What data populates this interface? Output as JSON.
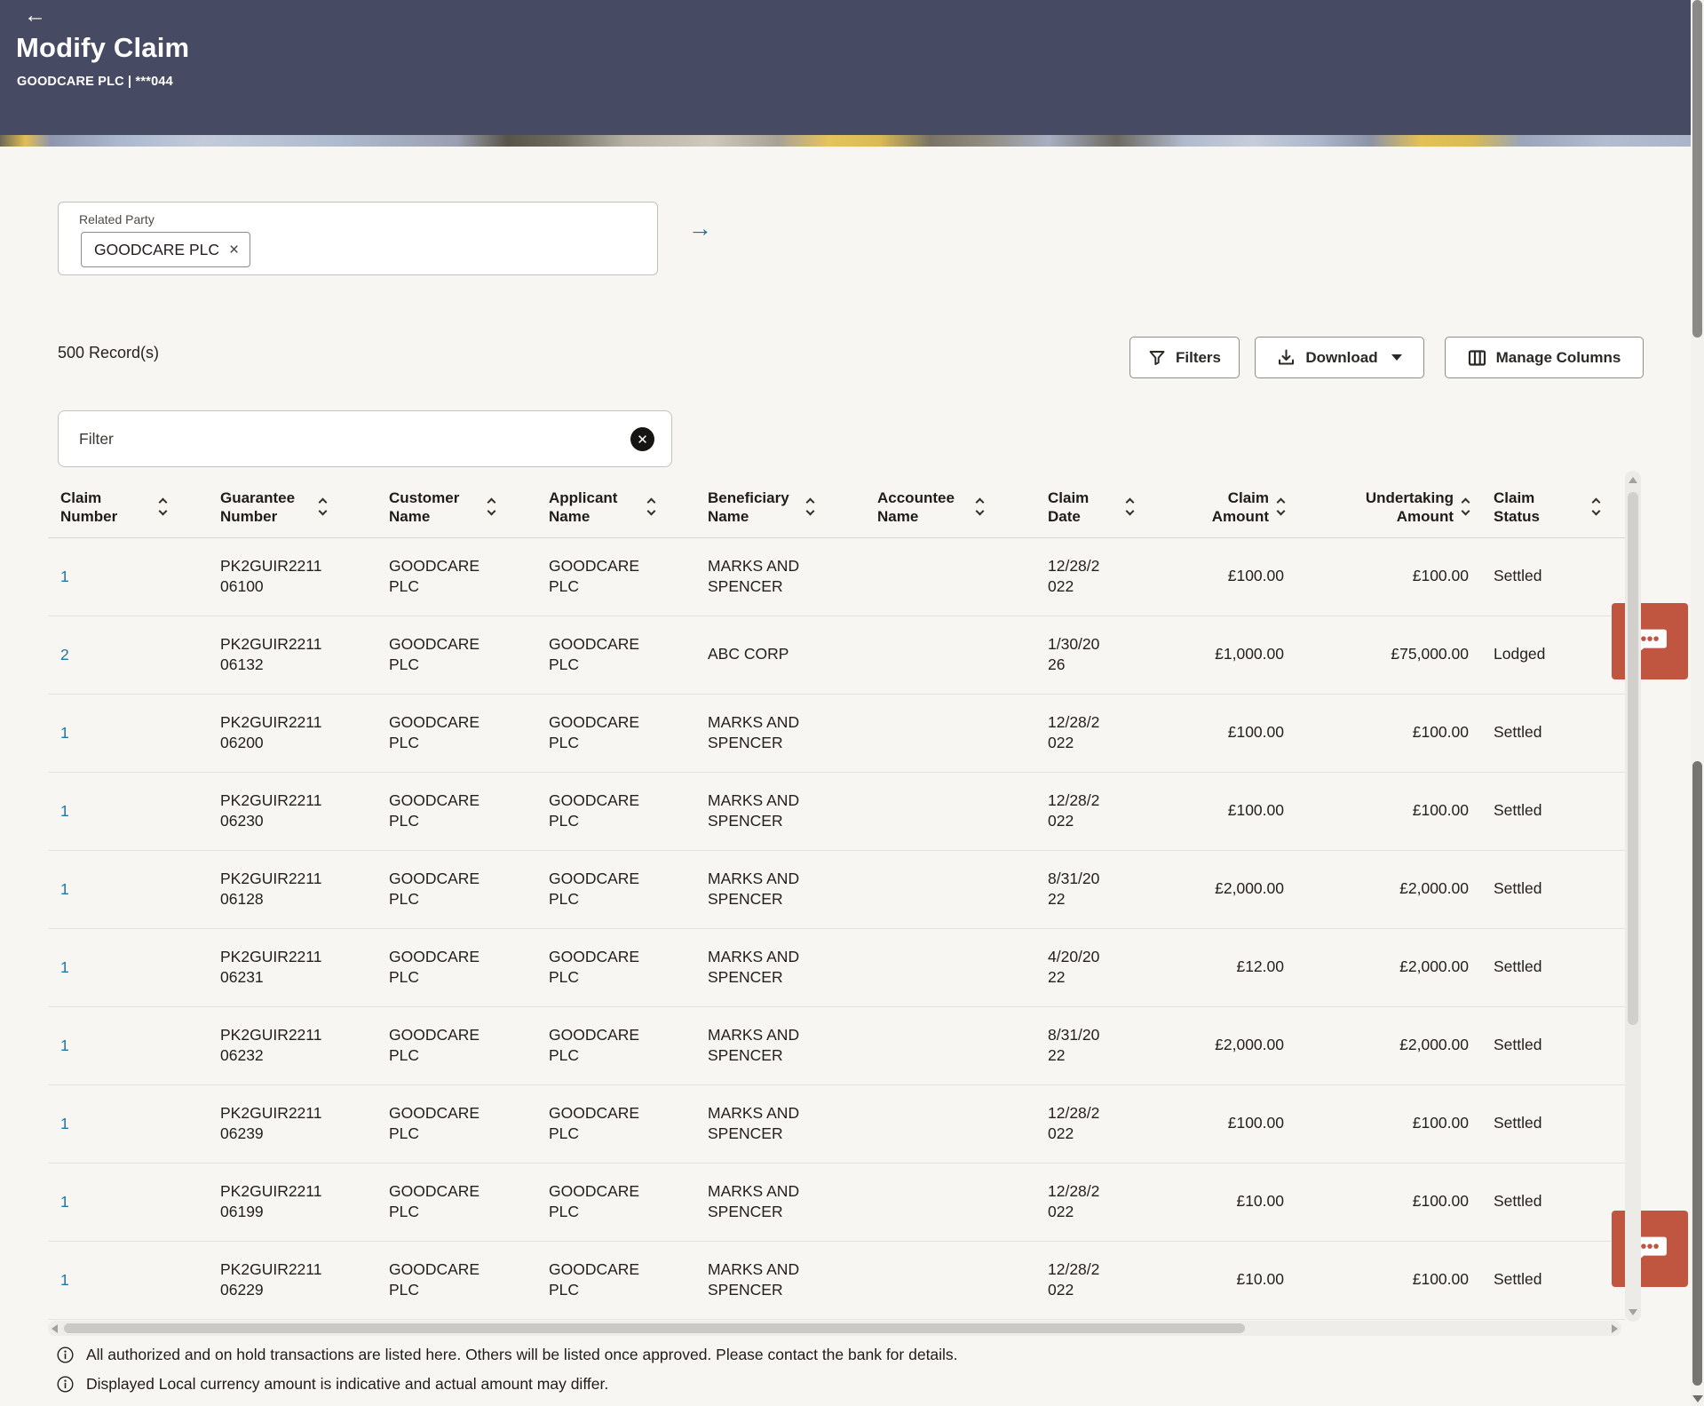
{
  "header": {
    "back_icon": "←",
    "title": "Modify Claim",
    "subtitle": "GOODCARE PLC | ***044"
  },
  "related_party": {
    "label": "Related Party",
    "chip_value": "GOODCARE PLC",
    "chip_close_icon": "×",
    "submit_arrow_icon": "→"
  },
  "records_count": "500 Record(s)",
  "toolbar": {
    "filters_label": "Filters",
    "download_label": "Download",
    "manage_columns_label": "Manage Columns"
  },
  "filter": {
    "placeholder": "Filter",
    "value": "",
    "clear_icon": "✕"
  },
  "table": {
    "columns": [
      {
        "key": "claim_number",
        "label": "Claim Number",
        "align": "left",
        "sortable": true
      },
      {
        "key": "guarantee_number",
        "label": "Guarantee Number",
        "align": "left",
        "sortable": true
      },
      {
        "key": "customer_name",
        "label": "Customer Name",
        "align": "left",
        "sortable": true
      },
      {
        "key": "applicant_name",
        "label": "Applicant Name",
        "align": "left",
        "sortable": true
      },
      {
        "key": "beneficiary_name",
        "label": "Beneficiary Name",
        "align": "left",
        "sortable": true
      },
      {
        "key": "accountee_name",
        "label": "Accountee Name",
        "align": "left",
        "sortable": true
      },
      {
        "key": "claim_date",
        "label": "Claim Date",
        "align": "left",
        "sortable": true
      },
      {
        "key": "claim_amount",
        "label": "Claim Amount",
        "align": "right",
        "sortable": true
      },
      {
        "key": "undertaking_amount",
        "label": "Undertaking Amount",
        "align": "right",
        "sortable": true
      },
      {
        "key": "claim_status",
        "label": "Claim Status",
        "align": "left",
        "sortable": true
      }
    ],
    "rows": [
      {
        "claim_number": "1",
        "guarantee_number": "PK2GUIR221106100",
        "customer_name": "GOODCARE PLC",
        "applicant_name": "GOODCARE PLC",
        "beneficiary_name": "MARKS AND SPENCER",
        "accountee_name": "",
        "claim_date": "12/28/2022",
        "claim_amount": "£100.00",
        "undertaking_amount": "£100.00",
        "claim_status": "Settled"
      },
      {
        "claim_number": "2",
        "guarantee_number": "PK2GUIR221106132",
        "customer_name": "GOODCARE PLC",
        "applicant_name": "GOODCARE PLC",
        "beneficiary_name": "ABC CORP",
        "accountee_name": "",
        "claim_date": "1/30/2026",
        "claim_amount": "£1,000.00",
        "undertaking_amount": "£75,000.00",
        "claim_status": "Lodged"
      },
      {
        "claim_number": "1",
        "guarantee_number": "PK2GUIR221106200",
        "customer_name": "GOODCARE PLC",
        "applicant_name": "GOODCARE PLC",
        "beneficiary_name": "MARKS AND SPENCER",
        "accountee_name": "",
        "claim_date": "12/28/2022",
        "claim_amount": "£100.00",
        "undertaking_amount": "£100.00",
        "claim_status": "Settled"
      },
      {
        "claim_number": "1",
        "guarantee_number": "PK2GUIR221106230",
        "customer_name": "GOODCARE PLC",
        "applicant_name": "GOODCARE PLC",
        "beneficiary_name": "MARKS AND SPENCER",
        "accountee_name": "",
        "claim_date": "12/28/2022",
        "claim_amount": "£100.00",
        "undertaking_amount": "£100.00",
        "claim_status": "Settled"
      },
      {
        "claim_number": "1",
        "guarantee_number": "PK2GUIR221106128",
        "customer_name": "GOODCARE PLC",
        "applicant_name": "GOODCARE PLC",
        "beneficiary_name": "MARKS AND SPENCER",
        "accountee_name": "",
        "claim_date": "8/31/2022",
        "claim_amount": "£2,000.00",
        "undertaking_amount": "£2,000.00",
        "claim_status": "Settled"
      },
      {
        "claim_number": "1",
        "guarantee_number": "PK2GUIR221106231",
        "customer_name": "GOODCARE PLC",
        "applicant_name": "GOODCARE PLC",
        "beneficiary_name": "MARKS AND SPENCER",
        "accountee_name": "",
        "claim_date": "4/20/2022",
        "claim_amount": "£12.00",
        "undertaking_amount": "£2,000.00",
        "claim_status": "Settled"
      },
      {
        "claim_number": "1",
        "guarantee_number": "PK2GUIR221106232",
        "customer_name": "GOODCARE PLC",
        "applicant_name": "GOODCARE PLC",
        "beneficiary_name": "MARKS AND SPENCER",
        "accountee_name": "",
        "claim_date": "8/31/2022",
        "claim_amount": "£2,000.00",
        "undertaking_amount": "£2,000.00",
        "claim_status": "Settled"
      },
      {
        "claim_number": "1",
        "guarantee_number": "PK2GUIR221106239",
        "customer_name": "GOODCARE PLC",
        "applicant_name": "GOODCARE PLC",
        "beneficiary_name": "MARKS AND SPENCER",
        "accountee_name": "",
        "claim_date": "12/28/2022",
        "claim_amount": "£100.00",
        "undertaking_amount": "£100.00",
        "claim_status": "Settled"
      },
      {
        "claim_number": "1",
        "guarantee_number": "PK2GUIR221106199",
        "customer_name": "GOODCARE PLC",
        "applicant_name": "GOODCARE PLC",
        "beneficiary_name": "MARKS AND SPENCER",
        "accountee_name": "",
        "claim_date": "12/28/2022",
        "claim_amount": "£10.00",
        "undertaking_amount": "£100.00",
        "claim_status": "Settled"
      },
      {
        "claim_number": "1",
        "guarantee_number": "PK2GUIR221106229",
        "customer_name": "GOODCARE PLC",
        "applicant_name": "GOODCARE PLC",
        "beneficiary_name": "MARKS AND SPENCER",
        "accountee_name": "",
        "claim_date": "12/28/2022",
        "claim_amount": "£10.00",
        "undertaking_amount": "£100.00",
        "claim_status": "Settled"
      }
    ]
  },
  "notes": [
    {
      "text": "All authorized and on hold transactions are listed here. Others will be listed once approved. Please contact the bank for details."
    },
    {
      "text": "Displayed Local currency amount is indicative and actual amount may differ."
    }
  ],
  "colors": {
    "header_bg": "#474a63",
    "link": "#1a78a2",
    "chat_button": "#c05540",
    "submit_arrow": "#1a6f9e"
  }
}
